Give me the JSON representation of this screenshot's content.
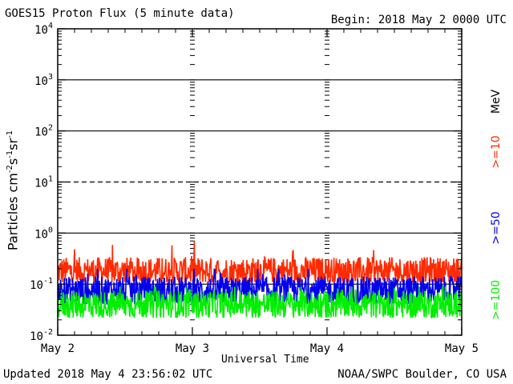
{
  "header": {
    "title": "GOES15 Proton Flux (5 minute data)",
    "begin": "Begin: 2018 May 2 0000 UTC"
  },
  "footer": {
    "updated": "Updated 2018 May  4 23:56:02 UTC",
    "credit": "NOAA/SWPC Boulder, CO USA"
  },
  "chart_data": {
    "type": "line",
    "title": "GOES15 Proton Flux (5 minute data)",
    "xlabel": "Universal Time",
    "ylabel": "Particles cm-2s-1sr-1",
    "yscale": "log",
    "ylim": [
      0.01,
      10000
    ],
    "yticks": [
      {
        "exp": "-2",
        "value": 0.01
      },
      {
        "exp": "-1",
        "value": 0.1
      },
      {
        "exp": "0",
        "value": 1
      },
      {
        "exp": "1",
        "value": 10
      },
      {
        "exp": "2",
        "value": 100
      },
      {
        "exp": "3",
        "value": 1000
      },
      {
        "exp": "4",
        "value": 10000
      }
    ],
    "ytick_base": "10",
    "xticks": [
      "May 2",
      "May 3",
      "May 4",
      "May 5"
    ],
    "xlim_days": [
      0,
      3
    ],
    "thresholds": [
      {
        "value": 1000,
        "style": "solid"
      },
      {
        "value": 100,
        "style": "solid"
      },
      {
        "value": 10,
        "style": "dashed"
      },
      {
        "value": 1,
        "style": "solid"
      },
      {
        "value": 0.1,
        "style": "solid"
      }
    ],
    "units_label": "MeV",
    "series": [
      {
        "name": ">=10",
        "color": "#ff2a00",
        "typical": 0.18,
        "min": 0.11,
        "max": 0.68
      },
      {
        "name": ">=50",
        "color": "#0000ee",
        "typical": 0.075,
        "min": 0.04,
        "max": 0.2
      },
      {
        "name": ">=100",
        "color": "#00ee00",
        "typical": 0.04,
        "min": 0.022,
        "max": 0.09
      }
    ]
  }
}
